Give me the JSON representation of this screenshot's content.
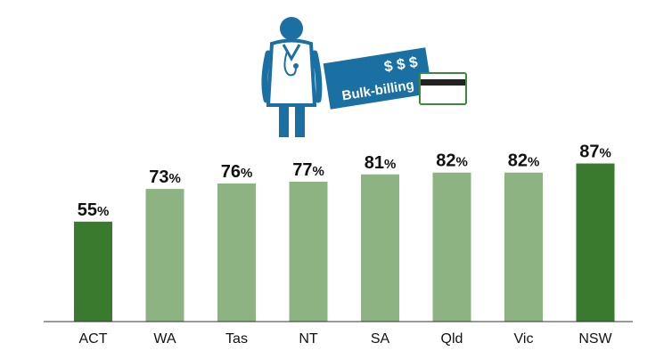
{
  "illustration": {
    "icons": [
      "doctor-icon",
      "bulk-billing-banner",
      "credit-card-icon"
    ],
    "banner_symbols": "$ $ $",
    "banner_label": "Bulk-billing",
    "banner_color": "#1a6fa3",
    "card_color": "#3a8a3a"
  },
  "chart_data": {
    "type": "bar",
    "categories": [
      "ACT",
      "WA",
      "Tas",
      "NT",
      "SA",
      "Qld",
      "Vic",
      "NSW"
    ],
    "values": [
      55,
      73,
      76,
      77,
      81,
      82,
      82,
      87
    ],
    "value_suffix": "%",
    "ylim": [
      0,
      100
    ],
    "grid": false,
    "colors": {
      "highlight": "#3a7a2f",
      "normal": "#8db383"
    },
    "highlighted": [
      "ACT",
      "NSW"
    ]
  }
}
